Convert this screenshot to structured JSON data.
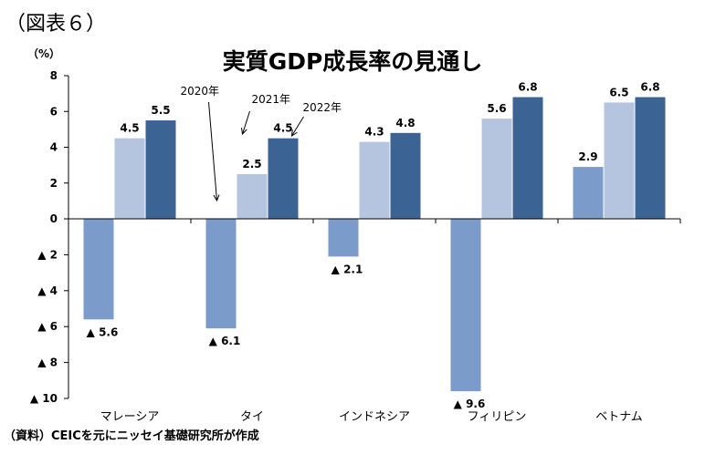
{
  "figure_label": "（図表６）",
  "unit_label": "（%）",
  "source_note": "（資料）CEICを元にニッセイ基礎研究所が作成",
  "colors": {
    "s2020": "#7b9bca",
    "s2021": "#b5c5df",
    "s2022": "#3b6495",
    "axis": "#000000"
  },
  "chart_data": {
    "type": "bar",
    "title": "実質GDP成長率の見通し",
    "categories": [
      "マレーシア",
      "タイ",
      "インドネシア",
      "フィリピン",
      "ベトナム"
    ],
    "series": [
      {
        "name": "2020年",
        "values": [
          -5.6,
          -6.1,
          -2.1,
          -9.6,
          2.9
        ],
        "labels": [
          "▲ 5.6",
          "▲ 6.1",
          "▲ 2.1",
          "▲ 9.6",
          "2.9"
        ]
      },
      {
        "name": "2021年",
        "values": [
          4.5,
          2.5,
          4.3,
          5.6,
          6.5
        ],
        "labels": [
          "4.5",
          "2.5",
          "4.3",
          "5.6",
          "6.5"
        ]
      },
      {
        "name": "2022年",
        "values": [
          5.5,
          4.5,
          4.8,
          6.8,
          6.8
        ],
        "labels": [
          "5.5",
          "4.5",
          "4.8",
          "6.8",
          "6.8"
        ]
      }
    ],
    "ylim": [
      -10,
      8
    ],
    "yticks": [
      8,
      6,
      4,
      2,
      0,
      -2,
      -4,
      -6,
      -8,
      -10
    ],
    "ytick_labels": [
      "8",
      "6",
      "4",
      "2",
      "0",
      "▲ 2",
      "▲ 4",
      "▲ 6",
      "▲ 8",
      "▲ 10"
    ],
    "grid": false,
    "legend": "annotations with arrows near タイ"
  }
}
